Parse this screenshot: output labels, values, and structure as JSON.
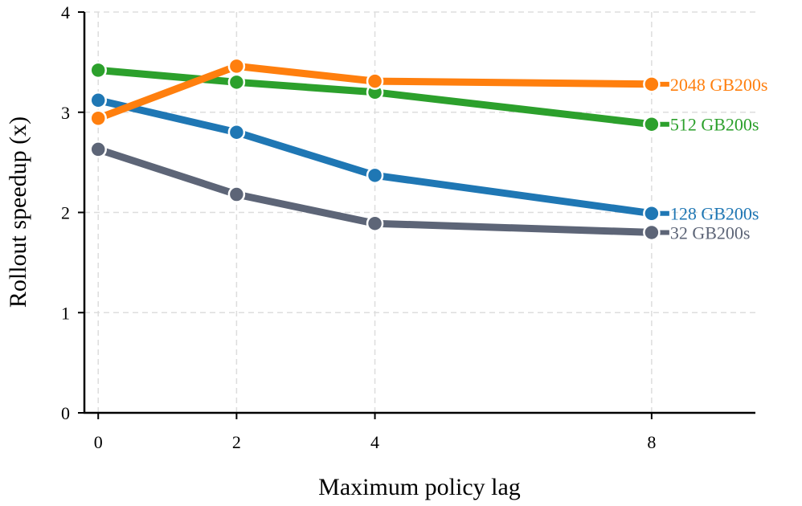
{
  "chart_data": {
    "type": "line",
    "title": "",
    "xlabel": "Maximum policy lag",
    "ylabel": "Rollout speedup (x)",
    "x": [
      0,
      2,
      4,
      8
    ],
    "x_ticks": [
      "0",
      "2",
      "4",
      "8"
    ],
    "y_ticks": [
      "0",
      "1",
      "2",
      "3",
      "4"
    ],
    "xlim": [
      -0.2,
      9.5
    ],
    "ylim": [
      0,
      4
    ],
    "grid": true,
    "legend": "direct labels at right end of each line",
    "series": [
      {
        "name": "32 GB200s",
        "color": "#5d6577",
        "values": [
          2.63,
          2.18,
          1.89,
          1.8
        ]
      },
      {
        "name": "128 GB200s",
        "color": "#1f77b4",
        "values": [
          3.12,
          2.8,
          2.37,
          1.99
        ]
      },
      {
        "name": "512 GB200s",
        "color": "#2ca02c",
        "values": [
          3.42,
          3.3,
          3.2,
          2.88
        ]
      },
      {
        "name": "2048 GB200s",
        "color": "#ff7f0e",
        "values": [
          2.94,
          3.46,
          3.31,
          3.28
        ]
      }
    ]
  }
}
